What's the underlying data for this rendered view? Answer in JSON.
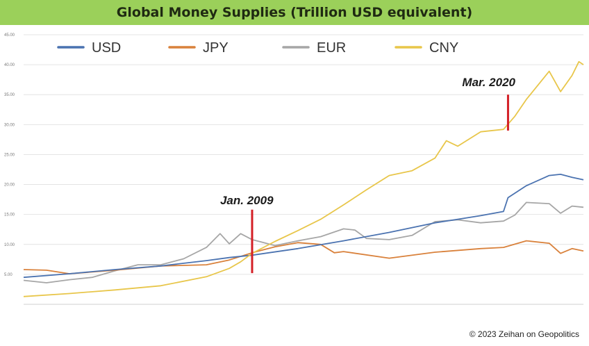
{
  "chart_data": {
    "type": "line",
    "title": "Global Money Supplies (Trillion USD equivalent)",
    "ylim": [
      0,
      45
    ],
    "yticks": [
      "5.00",
      "10.00",
      "15.00",
      "20.00",
      "25.00",
      "30.00",
      "35.00",
      "40.00",
      "45.00"
    ],
    "ytick_values": [
      5,
      10,
      15,
      20,
      25,
      30,
      35,
      40,
      45
    ],
    "xlim": [
      1999.0,
      2023.5
    ],
    "legend_position": "top",
    "grid": true,
    "series": [
      {
        "name": "USD",
        "color": "#4a72b0",
        "x": [
          1999,
          2001,
          2003,
          2005,
          2007,
          2008,
          2009,
          2011,
          2013,
          2015,
          2017,
          2018,
          2019,
          2020,
          2020.2,
          2021,
          2022,
          2022.5,
          2023,
          2023.5
        ],
        "y": [
          4.5,
          5.1,
          5.8,
          6.4,
          7.3,
          7.8,
          8.2,
          9.3,
          10.6,
          12.0,
          13.6,
          14.2,
          14.8,
          15.5,
          17.8,
          19.8,
          21.5,
          21.7,
          21.2,
          20.8
        ]
      },
      {
        "name": "JPY",
        "color": "#d9813b",
        "x": [
          1999,
          2000,
          2001,
          2003,
          2005,
          2007,
          2008,
          2009,
          2010,
          2011,
          2012,
          2012.6,
          2013,
          2015,
          2017,
          2019,
          2020,
          2021,
          2022,
          2022.5,
          2023,
          2023.5
        ],
        "y": [
          5.8,
          5.7,
          5.1,
          5.7,
          6.4,
          6.6,
          7.4,
          8.6,
          9.6,
          10.3,
          10.0,
          8.6,
          8.8,
          7.7,
          8.7,
          9.3,
          9.5,
          10.6,
          10.2,
          8.5,
          9.3,
          8.9
        ]
      },
      {
        "name": "EUR",
        "color": "#a6a6a6",
        "x": [
          1999,
          2000,
          2001,
          2002,
          2003,
          2004,
          2005,
          2006,
          2007,
          2007.6,
          2008,
          2008.5,
          2009,
          2010,
          2011,
          2012,
          2013,
          2013.5,
          2014,
          2015,
          2016,
          2017,
          2018,
          2019,
          2020,
          2020.5,
          2021,
          2022,
          2022.5,
          2023,
          2023.5
        ],
        "y": [
          4.0,
          3.6,
          4.1,
          4.5,
          5.6,
          6.6,
          6.6,
          7.6,
          9.5,
          11.8,
          10.1,
          11.8,
          10.8,
          9.8,
          10.6,
          11.3,
          12.6,
          12.4,
          11.0,
          10.8,
          11.5,
          13.8,
          14.1,
          13.6,
          13.9,
          14.9,
          17.0,
          16.8,
          15.2,
          16.4,
          16.2
        ]
      },
      {
        "name": "CNY",
        "color": "#e8c64a",
        "x": [
          1999,
          2001,
          2003,
          2005,
          2007,
          2008,
          2008.5,
          2009,
          2010,
          2011,
          2012,
          2013,
          2014,
          2015,
          2016,
          2017,
          2017.5,
          2018,
          2019,
          2020,
          2020.5,
          2021,
          2022,
          2022.5,
          2023,
          2023.3,
          2023.5
        ],
        "y": [
          1.3,
          1.8,
          2.4,
          3.1,
          4.6,
          6.0,
          7.1,
          8.5,
          10.5,
          12.3,
          14.2,
          16.6,
          19.1,
          21.5,
          22.3,
          24.4,
          27.3,
          26.4,
          28.8,
          29.2,
          31.4,
          34.2,
          38.9,
          35.5,
          38.2,
          40.5,
          40.0
        ]
      }
    ],
    "annotations": [
      {
        "label": "Jan. 2009",
        "x": 2009.0,
        "y_from": 5.2,
        "y_to": 15.8
      },
      {
        "label": "Mar. 2020",
        "x": 2020.2,
        "y_from": 29.0,
        "y_to": 35.0
      }
    ],
    "footer": "© 2023 Zeihan on Geopolitics"
  }
}
